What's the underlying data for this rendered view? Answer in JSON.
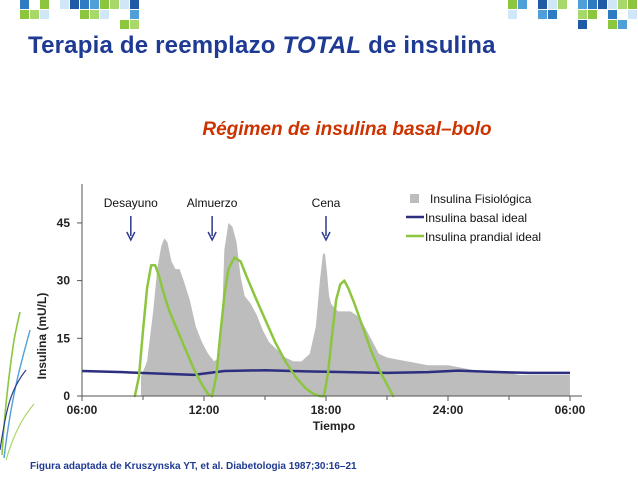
{
  "header": {
    "title_part1": "Terapia de reemplazo ",
    "title_emph": "TOTAL",
    "title_part2": " de insulina"
  },
  "caption": "Figura adaptada de Kruszynska YT, et al. Diabetologia 1987;30:16–21",
  "colors": {
    "title": "#1f3a93",
    "subtitle": "#cc3300",
    "physiologic": "#bdbdbd",
    "basal": "#2e2e80",
    "prandial": "#8cc63f",
    "arrow": "#2e3a8c"
  },
  "chart_data": {
    "type": "area",
    "title": "Régimen de insulina basal–bolo",
    "xlabel": "Tiempo",
    "ylabel": "Insulina (mU/L)",
    "xlim": [
      6,
      30
    ],
    "ylim": [
      0,
      52
    ],
    "x_ticks": [
      6,
      12,
      18,
      24,
      30
    ],
    "x_tick_labels": [
      "06:00",
      "12:00",
      "18:00",
      "24:00",
      "06:00"
    ],
    "y_ticks": [
      0,
      15,
      30,
      45
    ],
    "y_tick_labels": [
      "0",
      "15",
      "30",
      "45"
    ],
    "legend_position": "top-right",
    "legend": [
      {
        "label": "Insulina Fisiológica",
        "kind": "box",
        "color": "#bdbdbd"
      },
      {
        "label": "Insulina basal ideal",
        "kind": "line",
        "color": "#2e2e80"
      },
      {
        "label": "Insulina prandial ideal",
        "kind": "line",
        "color": "#8cc63f"
      }
    ],
    "annotations": [
      {
        "label": "Desayuno",
        "x": 8.4
      },
      {
        "label": "Almuerzo",
        "x": 12.4
      },
      {
        "label": "Cena",
        "x": 18.0
      }
    ],
    "series": [
      {
        "name": "Insulina Fisiológica",
        "kind": "area",
        "color": "#bdbdbd",
        "x": [
          8.9,
          9.2,
          9.5,
          9.7,
          9.9,
          10.05,
          10.2,
          10.4,
          10.6,
          10.8,
          11.0,
          11.3,
          11.6,
          11.9,
          12.2,
          12.5,
          12.75,
          12.9,
          13.0,
          13.2,
          13.4,
          13.6,
          13.8,
          14.0,
          14.3,
          14.6,
          14.9,
          15.2,
          15.6,
          16.0,
          16.4,
          16.8,
          17.2,
          17.5,
          17.7,
          17.85,
          17.95,
          18.05,
          18.15,
          18.25,
          18.4,
          18.6,
          18.9,
          19.2,
          19.5,
          19.8,
          20.2,
          20.6,
          21.0,
          21.5,
          22.0,
          22.5,
          23.0,
          23.5,
          24.0,
          24.5,
          25.0,
          25.5,
          26.0,
          26.5,
          27.0,
          27.5,
          28.0,
          28.5,
          29.0,
          29.5,
          30.0
        ],
        "values": [
          5,
          9,
          22,
          33,
          39,
          41,
          40,
          35,
          33,
          33,
          30,
          25,
          18,
          14,
          11,
          9,
          10,
          22,
          38,
          45,
          44,
          40,
          31,
          26,
          24,
          21,
          17,
          14,
          12,
          10,
          9,
          9,
          11,
          18,
          30,
          37,
          37,
          32,
          26,
          24,
          23,
          22,
          22,
          22,
          21,
          19,
          15,
          11,
          10,
          9.5,
          9,
          8.5,
          8,
          8,
          8,
          7.5,
          7,
          6.5,
          6,
          6,
          6,
          5.5,
          5.5,
          5.5,
          5.5,
          5.5,
          5.5
        ]
      },
      {
        "name": "Insulina basal ideal",
        "kind": "line",
        "color": "#2e2e80",
        "x": [
          6,
          8,
          10,
          11.5,
          13,
          15,
          17,
          19,
          21,
          23,
          24.5,
          26,
          28,
          30
        ],
        "values": [
          6.5,
          6.2,
          5.8,
          5.5,
          6.5,
          6.7,
          6.4,
          6.2,
          6.0,
          6.2,
          6.6,
          6.3,
          6.0,
          6.0
        ]
      },
      {
        "name": "Insulina prandial ideal",
        "kind": "line",
        "segments": [
          {
            "x": [
              8.6,
              8.8,
              9.0,
              9.2,
              9.4,
              9.6,
              9.8,
              10.0,
              10.3,
              10.7,
              11.1,
              11.5,
              11.9,
              12.2,
              12.4
            ],
            "values": [
              0,
              5,
              17,
              28,
              34,
              34,
              31,
              27,
              22,
              17,
              12,
              7,
              3,
              0.5,
              0
            ]
          },
          {
            "x": [
              12.4,
              12.6,
              12.8,
              13.0,
              13.2,
              13.5,
              13.8,
              14.1,
              14.5,
              15.0,
              15.5,
              16.0,
              16.5,
              17.0,
              17.4,
              17.7,
              17.9
            ],
            "values": [
              0,
              5,
              16,
              26,
              33,
              36,
              35,
              31,
              26,
              20,
              14,
              9,
              5,
              2,
              0.5,
              0,
              0
            ]
          },
          {
            "x": [
              17.9,
              18.1,
              18.3,
              18.5,
              18.7,
              18.9,
              19.1,
              19.4,
              19.8,
              20.2,
              20.6,
              21.0,
              21.3
            ],
            "values": [
              0,
              6,
              16,
              25,
              29,
              30,
              28,
              24,
              18,
              12,
              7,
              3,
              0
            ]
          }
        ],
        "color": "#8cc63f"
      }
    ]
  }
}
